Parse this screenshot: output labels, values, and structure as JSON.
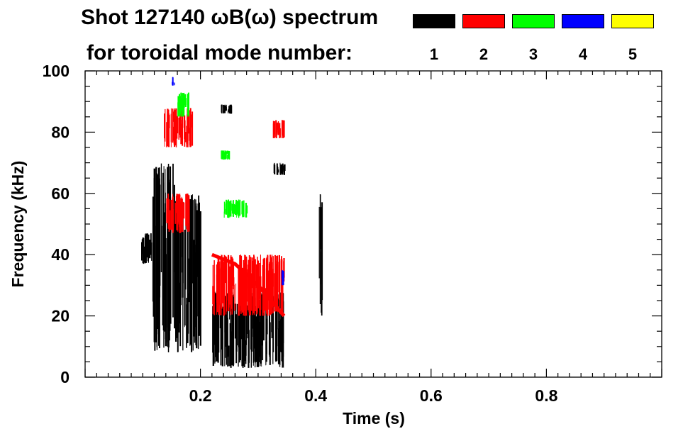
{
  "chart_data": {
    "type": "scatter",
    "title_line1": "Shot 127140 ωB(ω) spectrum",
    "title_line2": "for toroidal mode number:",
    "xlabel": "Time (s)",
    "ylabel": "Frequency (kHz)",
    "xlim": [
      0.0,
      1.0
    ],
    "ylim": [
      0,
      100
    ],
    "xticks": [
      0.2,
      0.4,
      0.6,
      0.8
    ],
    "xtick_labels": [
      "0.2",
      "0.4",
      "0.6",
      "0.8"
    ],
    "yticks": [
      0,
      20,
      40,
      60,
      80,
      100
    ],
    "ytick_labels": [
      "0",
      "20",
      "40",
      "60",
      "80",
      "100"
    ],
    "legend": [
      {
        "label": "1",
        "color": "#000000"
      },
      {
        "label": "2",
        "color": "#ff0000"
      },
      {
        "label": "3",
        "color": "#00ff00"
      },
      {
        "label": "4",
        "color": "#0000ff"
      },
      {
        "label": "5",
        "color": "#ffff00"
      }
    ],
    "series": [
      {
        "name": "n=1",
        "color": "#000000",
        "regions": [
          {
            "t": [
              0.095,
              0.115
            ],
            "f": [
              37,
              47
            ]
          },
          {
            "t": [
              0.115,
              0.155
            ],
            "f": [
              8,
              70
            ]
          },
          {
            "t": [
              0.155,
              0.2
            ],
            "f": [
              8,
              60
            ]
          },
          {
            "t": [
              0.22,
              0.345
            ],
            "f": [
              3,
              28
            ]
          },
          {
            "t": [
              0.235,
              0.255
            ],
            "f": [
              86,
              89
            ]
          },
          {
            "t": [
              0.325,
              0.345
            ],
            "f": [
              66,
              70
            ]
          },
          {
            "t": [
              0.405,
              0.41
            ],
            "f": [
              20,
              60
            ]
          }
        ]
      },
      {
        "name": "n=2",
        "color": "#ff0000",
        "regions": [
          {
            "t": [
              0.135,
              0.185
            ],
            "f": [
              75,
              88
            ]
          },
          {
            "t": [
              0.14,
              0.18
            ],
            "f": [
              47,
              60
            ]
          },
          {
            "t": [
              0.22,
              0.345
            ],
            "f": [
              20,
              40
            ]
          },
          {
            "t": [
              0.325,
              0.345
            ],
            "f": [
              78,
              84
            ]
          }
        ],
        "trend": [
          [
            0.22,
            40
          ],
          [
            0.26,
            37
          ],
          [
            0.3,
            30
          ],
          [
            0.345,
            20
          ]
        ]
      },
      {
        "name": "n=3",
        "color": "#00ff00",
        "regions": [
          {
            "t": [
              0.16,
              0.18
            ],
            "f": [
              85,
              93
            ]
          },
          {
            "t": [
              0.24,
              0.28
            ],
            "f": [
              52,
              58
            ]
          },
          {
            "t": [
              0.235,
              0.25
            ],
            "f": [
              71,
              74
            ]
          }
        ]
      },
      {
        "name": "n=4",
        "color": "#0000ff",
        "regions": [
          {
            "t": [
              0.15,
              0.155
            ],
            "f": [
              95,
              98
            ]
          },
          {
            "t": [
              0.34,
              0.345
            ],
            "f": [
              30,
              35
            ]
          }
        ]
      },
      {
        "name": "n=5",
        "color": "#ffff00",
        "regions": []
      }
    ]
  }
}
